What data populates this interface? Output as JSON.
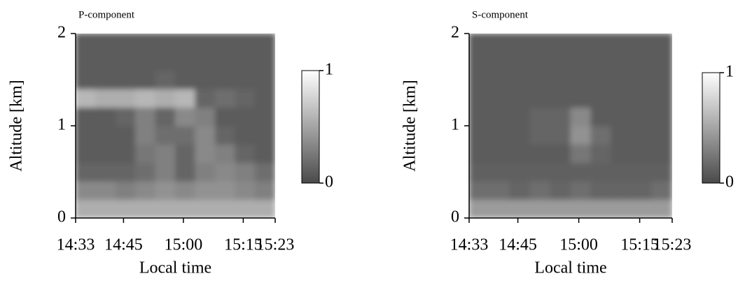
{
  "chart_data": [
    {
      "type": "heatmap",
      "title": "P-component",
      "x_label": "Local time",
      "y_label": "Altitude [km]",
      "xbins": [
        873,
        878,
        883,
        888,
        893,
        898,
        903,
        908,
        913,
        918,
        923
      ],
      "ybins": [
        0,
        0.2,
        0.4,
        0.6,
        0.8,
        1.0,
        1.2,
        1.4,
        1.6,
        1.8,
        2.0
      ],
      "z": [
        [
          0.55,
          0.55,
          0.55,
          0.55,
          0.55,
          0.55,
          0.55,
          0.55,
          0.55,
          0.55
        ],
        [
          0.35,
          0.35,
          0.3,
          0.35,
          0.4,
          0.35,
          0.4,
          0.4,
          0.35,
          0.3
        ],
        [
          0.15,
          0.15,
          0.15,
          0.2,
          0.3,
          0.15,
          0.3,
          0.35,
          0.3,
          0.2
        ],
        [
          0.1,
          0.1,
          0.1,
          0.25,
          0.3,
          0.15,
          0.35,
          0.3,
          0.15,
          0.1
        ],
        [
          0.1,
          0.1,
          0.1,
          0.3,
          0.2,
          0.2,
          0.35,
          0.15,
          0.1,
          0.1
        ],
        [
          0.1,
          0.1,
          0.15,
          0.3,
          0.15,
          0.35,
          0.3,
          0.1,
          0.1,
          0.1
        ],
        [
          0.6,
          0.55,
          0.55,
          0.6,
          0.55,
          0.6,
          0.15,
          0.2,
          0.15,
          0.1
        ],
        [
          0.1,
          0.1,
          0.1,
          0.1,
          0.15,
          0.1,
          0.1,
          0.1,
          0.1,
          0.1
        ],
        [
          0.1,
          0.1,
          0.1,
          0.1,
          0.1,
          0.1,
          0.1,
          0.1,
          0.1,
          0.1
        ],
        [
          0.1,
          0.1,
          0.1,
          0.1,
          0.1,
          0.1,
          0.1,
          0.1,
          0.1,
          0.1
        ]
      ],
      "xlim": [
        873,
        923
      ],
      "xticks": [
        {
          "value": 873,
          "label": "14:33"
        },
        {
          "value": 885,
          "label": "14:45"
        },
        {
          "value": 900,
          "label": "15:00"
        },
        {
          "value": 915,
          "label": "15:15"
        },
        {
          "value": 923,
          "label": "15:23"
        }
      ],
      "ylim": [
        0,
        2
      ],
      "yticks": [
        0,
        1,
        2
      ],
      "clim": [
        0,
        1
      ],
      "cticks": [
        0,
        1
      ],
      "colormap": [
        "#4a4a4a",
        "#ffffff"
      ]
    },
    {
      "type": "heatmap",
      "title": "S-component",
      "x_label": "Local time",
      "y_label": "Altitude [km]",
      "xbins": [
        873,
        878,
        883,
        888,
        893,
        898,
        903,
        908,
        913,
        918,
        923
      ],
      "ybins": [
        0,
        0.2,
        0.4,
        0.6,
        0.8,
        1.0,
        1.2,
        1.4,
        1.6,
        1.8,
        2.0
      ],
      "z": [
        [
          0.45,
          0.45,
          0.45,
          0.45,
          0.45,
          0.45,
          0.45,
          0.45,
          0.45,
          0.45
        ],
        [
          0.2,
          0.2,
          0.15,
          0.2,
          0.15,
          0.2,
          0.15,
          0.15,
          0.15,
          0.2
        ],
        [
          0.12,
          0.12,
          0.12,
          0.12,
          0.12,
          0.12,
          0.12,
          0.12,
          0.12,
          0.12
        ],
        [
          0.1,
          0.1,
          0.1,
          0.1,
          0.1,
          0.25,
          0.15,
          0.1,
          0.1,
          0.1
        ],
        [
          0.1,
          0.1,
          0.1,
          0.15,
          0.15,
          0.4,
          0.2,
          0.1,
          0.1,
          0.1
        ],
        [
          0.1,
          0.1,
          0.1,
          0.15,
          0.15,
          0.35,
          0.1,
          0.1,
          0.1,
          0.1
        ],
        [
          0.1,
          0.1,
          0.1,
          0.1,
          0.1,
          0.1,
          0.1,
          0.1,
          0.1,
          0.1
        ],
        [
          0.1,
          0.1,
          0.1,
          0.1,
          0.1,
          0.1,
          0.1,
          0.1,
          0.1,
          0.1
        ],
        [
          0.1,
          0.1,
          0.1,
          0.1,
          0.1,
          0.1,
          0.1,
          0.1,
          0.1,
          0.1
        ],
        [
          0.1,
          0.1,
          0.1,
          0.1,
          0.1,
          0.1,
          0.1,
          0.1,
          0.1,
          0.1
        ]
      ],
      "xlim": [
        873,
        923
      ],
      "xticks": [
        {
          "value": 873,
          "label": "14:33"
        },
        {
          "value": 885,
          "label": "14:45"
        },
        {
          "value": 900,
          "label": "15:00"
        },
        {
          "value": 915,
          "label": "15:15"
        },
        {
          "value": 923,
          "label": "15:23"
        }
      ],
      "ylim": [
        0,
        2
      ],
      "yticks": [
        0,
        1,
        2
      ],
      "clim": [
        0,
        1
      ],
      "cticks": [
        0,
        1
      ],
      "colormap": [
        "#4a4a4a",
        "#ffffff"
      ]
    }
  ]
}
